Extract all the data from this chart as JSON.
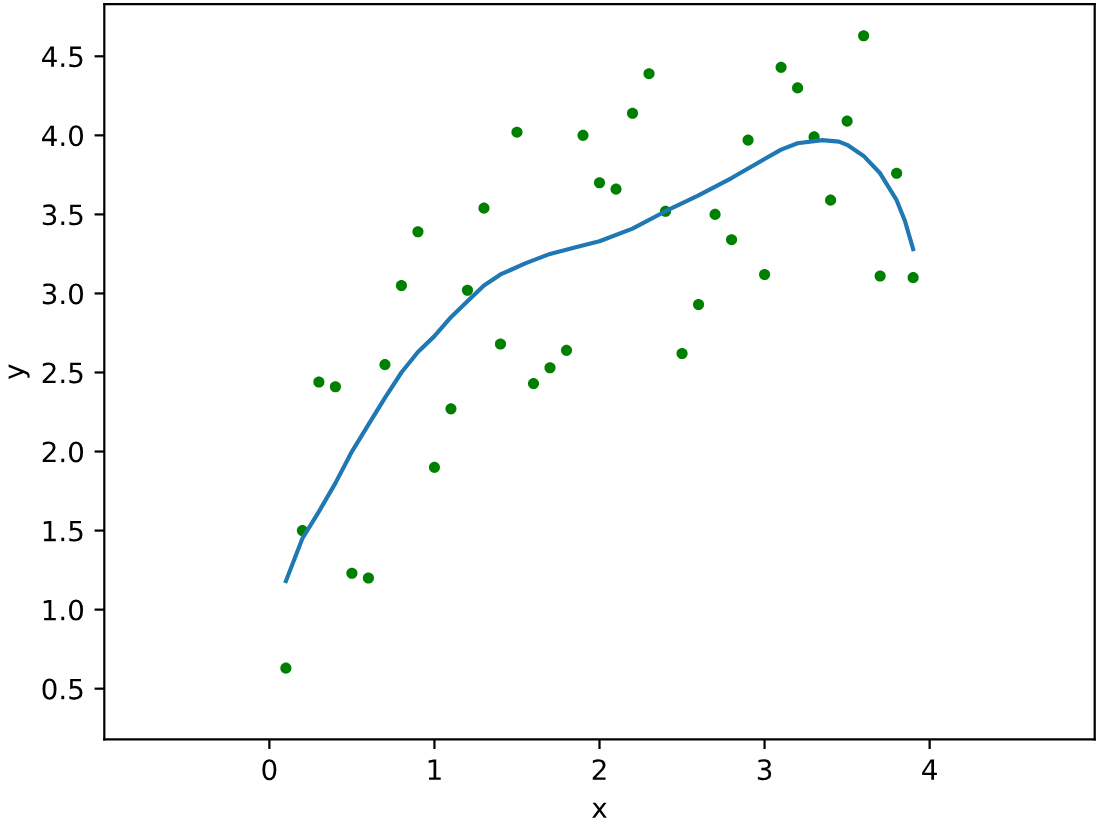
{
  "chart_data": {
    "type": "scatter",
    "xlabel": "x",
    "ylabel": "y",
    "xlim": [
      -1.0,
      5.0
    ],
    "ylim": [
      0.18,
      4.83
    ],
    "xticks": [
      0,
      1,
      2,
      3,
      4
    ],
    "yticks": [
      {
        "value": 0.5,
        "label": "0.5"
      },
      {
        "value": 1.0,
        "label": "1.0"
      },
      {
        "value": 1.5,
        "label": "1.5"
      },
      {
        "value": 2.0,
        "label": "2.0"
      },
      {
        "value": 2.5,
        "label": "2.5"
      },
      {
        "value": 3.0,
        "label": "3.0"
      },
      {
        "value": 3.5,
        "label": "3.5"
      },
      {
        "value": 4.0,
        "label": "4.0"
      },
      {
        "value": 4.5,
        "label": "4.5"
      }
    ],
    "series": [
      {
        "color": "#008000",
        "marker": "circle",
        "x": [
          0.1,
          0.2,
          0.3,
          0.4,
          0.5,
          0.6,
          0.7,
          0.8,
          0.9,
          1.0,
          1.1,
          1.2,
          1.3,
          1.4,
          1.5,
          1.6,
          1.7,
          1.8,
          1.9,
          2.0,
          2.1,
          2.2,
          2.3,
          2.4,
          2.5,
          2.6,
          2.7,
          2.8,
          2.9,
          3.0,
          3.1,
          3.2,
          3.3,
          3.4,
          3.5,
          3.6,
          3.7,
          3.8,
          3.9
        ],
        "values": [
          0.63,
          1.5,
          2.44,
          2.41,
          1.23,
          1.2,
          2.55,
          3.05,
          3.39,
          1.9,
          2.27,
          3.02,
          3.54,
          2.68,
          4.02,
          2.43,
          2.53,
          2.64,
          4.0,
          3.7,
          3.66,
          4.14,
          4.39,
          3.52,
          2.62,
          2.93,
          3.5,
          3.34,
          3.97,
          3.12,
          4.43,
          4.3,
          3.99,
          3.59,
          4.09,
          4.63,
          3.11,
          3.76,
          3.1
        ]
      },
      {
        "type": "line",
        "color": "#1f77b4",
        "marker": "none",
        "line_style": "solid",
        "x": [
          0.1,
          0.2,
          0.3,
          0.4,
          0.5,
          0.6,
          0.7,
          0.8,
          0.9,
          1.0,
          1.1,
          1.2,
          1.3,
          1.4,
          1.55,
          1.7,
          1.85,
          2.0,
          2.2,
          2.4,
          2.6,
          2.8,
          3.0,
          3.1,
          3.2,
          3.35,
          3.45,
          3.5,
          3.6,
          3.7,
          3.8,
          3.85,
          3.9
        ],
        "values": [
          1.18,
          1.45,
          1.62,
          1.8,
          2.0,
          2.17,
          2.34,
          2.5,
          2.63,
          2.73,
          2.85,
          2.95,
          3.05,
          3.12,
          3.19,
          3.25,
          3.29,
          3.33,
          3.41,
          3.52,
          3.62,
          3.73,
          3.85,
          3.91,
          3.95,
          3.97,
          3.96,
          3.94,
          3.87,
          3.76,
          3.59,
          3.46,
          3.28
        ]
      }
    ]
  }
}
